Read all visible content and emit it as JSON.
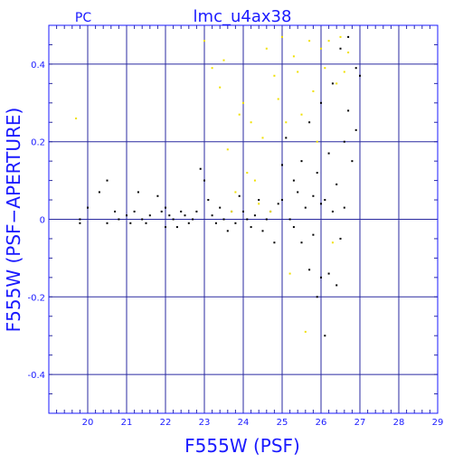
{
  "chart_data": {
    "type": "scatter",
    "title": "lmc_u4ax38",
    "corner_label": "PC",
    "xlabel": "F555W (PSF)",
    "ylabel": "F555W (PSF−APERTURE)",
    "xlim": [
      19,
      29
    ],
    "ylim": [
      -0.5,
      0.5
    ],
    "xticks": [
      "20",
      "21",
      "22",
      "23",
      "24",
      "25",
      "26",
      "27",
      "28",
      "29"
    ],
    "yticks": [
      "-0.4",
      "-0.2",
      "0",
      "0.2",
      "0.4"
    ],
    "grid": true,
    "colors": {
      "axis": "#1a1aff",
      "grid": "#2a2aa0",
      "black_points": "#000000",
      "yellow_points": "#f0e000"
    },
    "series": [
      {
        "color": "black",
        "points": [
          [
            19.8,
            0.0
          ],
          [
            19.8,
            -0.01
          ],
          [
            20.0,
            0.03
          ],
          [
            20.3,
            0.07
          ],
          [
            20.5,
            0.1
          ],
          [
            20.5,
            -0.01
          ],
          [
            20.7,
            0.02
          ],
          [
            20.8,
            0.0
          ],
          [
            21.0,
            0.01
          ],
          [
            21.1,
            -0.01
          ],
          [
            21.2,
            0.02
          ],
          [
            21.3,
            0.07
          ],
          [
            21.4,
            0.0
          ],
          [
            21.5,
            -0.01
          ],
          [
            21.6,
            0.01
          ],
          [
            21.8,
            0.06
          ],
          [
            21.9,
            0.02
          ],
          [
            22.0,
            0.03
          ],
          [
            22.0,
            -0.02
          ],
          [
            22.1,
            0.01
          ],
          [
            22.2,
            0.0
          ],
          [
            22.3,
            -0.02
          ],
          [
            22.4,
            0.02
          ],
          [
            22.5,
            0.01
          ],
          [
            22.6,
            -0.01
          ],
          [
            22.7,
            0.0
          ],
          [
            22.8,
            0.02
          ],
          [
            22.9,
            0.13
          ],
          [
            23.0,
            0.1
          ],
          [
            23.1,
            0.05
          ],
          [
            23.2,
            0.01
          ],
          [
            23.3,
            -0.01
          ],
          [
            23.4,
            0.03
          ],
          [
            23.5,
            0.0
          ],
          [
            23.6,
            -0.03
          ],
          [
            23.7,
            0.02
          ],
          [
            23.8,
            -0.01
          ],
          [
            23.9,
            0.06
          ],
          [
            24.0,
            0.02
          ],
          [
            24.1,
            0.0
          ],
          [
            24.2,
            -0.02
          ],
          [
            24.3,
            0.01
          ],
          [
            24.4,
            0.05
          ],
          [
            24.5,
            -0.03
          ],
          [
            24.6,
            0.0
          ],
          [
            24.7,
            0.02
          ],
          [
            24.8,
            -0.06
          ],
          [
            24.9,
            0.04
          ],
          [
            25.0,
            0.14
          ],
          [
            25.0,
            0.05
          ],
          [
            25.1,
            0.21
          ],
          [
            25.2,
            0.0
          ],
          [
            25.3,
            0.1
          ],
          [
            25.3,
            -0.02
          ],
          [
            25.4,
            0.07
          ],
          [
            25.5,
            -0.06
          ],
          [
            25.5,
            0.15
          ],
          [
            25.6,
            0.03
          ],
          [
            25.7,
            -0.13
          ],
          [
            25.7,
            0.25
          ],
          [
            25.8,
            0.06
          ],
          [
            25.8,
            -0.04
          ],
          [
            25.9,
            -0.2
          ],
          [
            25.9,
            0.12
          ],
          [
            26.0,
            -0.15
          ],
          [
            26.0,
            0.3
          ],
          [
            26.0,
            0.04
          ],
          [
            26.1,
            -0.3
          ],
          [
            26.1,
            0.05
          ],
          [
            26.2,
            0.17
          ],
          [
            26.2,
            -0.14
          ],
          [
            26.3,
            0.02
          ],
          [
            26.3,
            0.35
          ],
          [
            26.4,
            -0.17
          ],
          [
            26.4,
            0.09
          ],
          [
            26.5,
            0.44
          ],
          [
            26.5,
            -0.05
          ],
          [
            26.6,
            0.2
          ],
          [
            26.6,
            0.03
          ],
          [
            26.7,
            0.47
          ],
          [
            26.7,
            0.28
          ],
          [
            26.8,
            0.15
          ],
          [
            26.9,
            0.39
          ],
          [
            26.9,
            0.23
          ],
          [
            27.0,
            0.37
          ]
        ]
      },
      {
        "color": "yellow",
        "points": [
          [
            19.7,
            0.26
          ],
          [
            23.0,
            0.46
          ],
          [
            23.2,
            0.39
          ],
          [
            23.4,
            0.34
          ],
          [
            23.5,
            0.41
          ],
          [
            23.6,
            0.18
          ],
          [
            23.7,
            0.02
          ],
          [
            23.8,
            0.07
          ],
          [
            23.9,
            0.27
          ],
          [
            24.0,
            0.3
          ],
          [
            24.1,
            0.12
          ],
          [
            24.2,
            0.25
          ],
          [
            24.3,
            0.1
          ],
          [
            24.4,
            0.04
          ],
          [
            24.5,
            0.21
          ],
          [
            24.6,
            0.44
          ],
          [
            24.7,
            0.02
          ],
          [
            24.8,
            0.37
          ],
          [
            24.9,
            0.31
          ],
          [
            25.0,
            0.47
          ],
          [
            25.1,
            0.25
          ],
          [
            25.2,
            -0.14
          ],
          [
            25.3,
            0.42
          ],
          [
            25.4,
            0.38
          ],
          [
            25.5,
            0.27
          ],
          [
            25.6,
            -0.29
          ],
          [
            25.7,
            0.46
          ],
          [
            25.8,
            0.33
          ],
          [
            25.9,
            0.2
          ],
          [
            26.0,
            0.44
          ],
          [
            26.1,
            0.39
          ],
          [
            26.2,
            0.46
          ],
          [
            26.3,
            -0.06
          ],
          [
            26.4,
            0.35
          ],
          [
            26.5,
            0.47
          ],
          [
            26.6,
            0.38
          ],
          [
            26.7,
            0.43
          ]
        ]
      }
    ]
  }
}
